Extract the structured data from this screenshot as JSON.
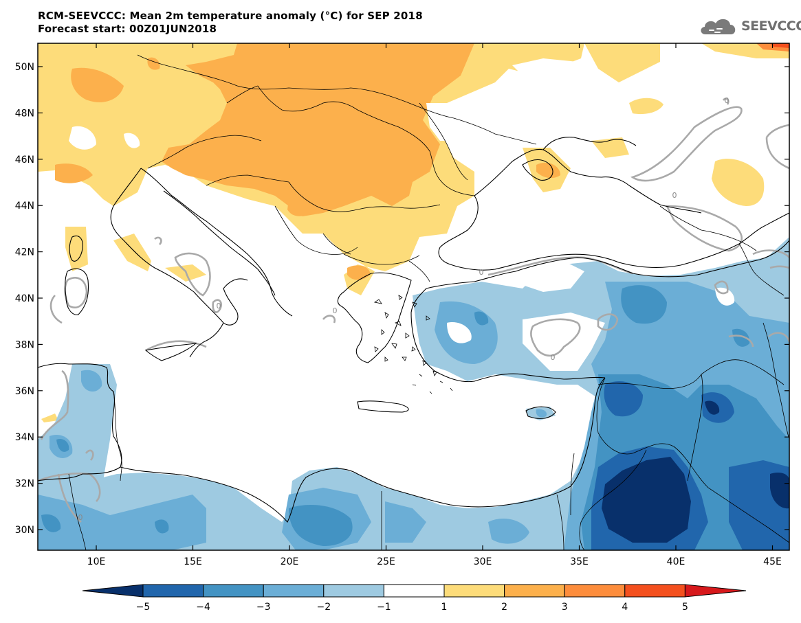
{
  "header": {
    "title_line1": "RCM-SEEVCCC: Mean 2m temperature anomaly (°C) for SEP 2018",
    "title_line2": "Forecast start: 00Z01JUN2018"
  },
  "logo": {
    "text": "SEEVCCC",
    "icon": "cloud-icon"
  },
  "map": {
    "lat_labels": [
      "50N",
      "48N",
      "46N",
      "44N",
      "42N",
      "40N",
      "38N",
      "36N",
      "34N",
      "32N",
      "30N"
    ],
    "lon_labels": [
      "10E",
      "15E",
      "20E",
      "25E",
      "30E",
      "35E",
      "40E",
      "45E"
    ],
    "contour_labels": [
      "0",
      "0",
      "0",
      "0",
      "0",
      "0",
      "0"
    ]
  },
  "colorbar": {
    "labels": [
      "−5",
      "−4",
      "−3",
      "−2",
      "−1",
      "1",
      "2",
      "3",
      "4",
      "5"
    ],
    "colors": [
      "#08306b",
      "#2166ac",
      "#4393c3",
      "#6baed6",
      "#9ecae1",
      "#ffffff",
      "#fddc7a",
      "#fcb04c",
      "#fd8d3c",
      "#f4501e",
      "#d7191c"
    ]
  },
  "colors": {
    "neg1": "#9ecae1",
    "neg2": "#6baed6",
    "neg3": "#4393c3",
    "neg4": "#2166ac",
    "neg5": "#08306b",
    "pos1": "#fddc7a",
    "pos2": "#fcb04c",
    "pos3": "#fd8d3c",
    "pos4": "#f4501e",
    "pos5": "#d7191c"
  }
}
